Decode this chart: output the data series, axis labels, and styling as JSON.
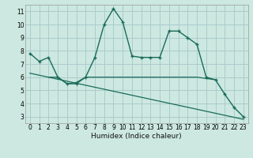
{
  "title": "",
  "xlabel": "Humidex (Indice chaleur)",
  "background_color": "#cce8e0",
  "grid_color": "#aacccc",
  "line_color": "#1a6b5a",
  "xlim": [
    -0.5,
    23.5
  ],
  "ylim": [
    2.5,
    11.5
  ],
  "yticks": [
    3,
    4,
    5,
    6,
    7,
    8,
    9,
    10,
    11
  ],
  "xticks": [
    0,
    1,
    2,
    3,
    4,
    5,
    6,
    7,
    8,
    9,
    10,
    11,
    12,
    13,
    14,
    15,
    16,
    17,
    18,
    19,
    20,
    21,
    22,
    23
  ],
  "main_x": [
    0,
    1,
    2,
    3,
    4,
    5,
    6,
    7,
    8,
    9,
    10,
    11,
    12,
    13,
    14,
    15,
    16,
    17,
    18,
    19,
    20,
    21,
    22,
    23
  ],
  "main_y": [
    7.8,
    7.2,
    7.5,
    6.0,
    5.5,
    5.5,
    6.0,
    7.5,
    10.0,
    11.2,
    10.2,
    7.6,
    7.5,
    7.5,
    7.5,
    9.5,
    9.5,
    9.0,
    8.5,
    6.0,
    5.8,
    4.7,
    3.7,
    3.0
  ],
  "line2_x": [
    2,
    3,
    4,
    5,
    6,
    7,
    8,
    9,
    10,
    11,
    12,
    13,
    14,
    15,
    16,
    17,
    18,
    19,
    20
  ],
  "line2_y": [
    6.0,
    6.0,
    5.5,
    5.6,
    6.0,
    6.0,
    6.0,
    6.0,
    6.0,
    6.0,
    6.0,
    6.0,
    6.0,
    6.0,
    6.0,
    6.0,
    6.0,
    5.9,
    5.8
  ],
  "line3_x": [
    0,
    23
  ],
  "line3_y": [
    6.3,
    2.8
  ],
  "tick_fontsize": 5.5,
  "xlabel_fontsize": 6.5
}
